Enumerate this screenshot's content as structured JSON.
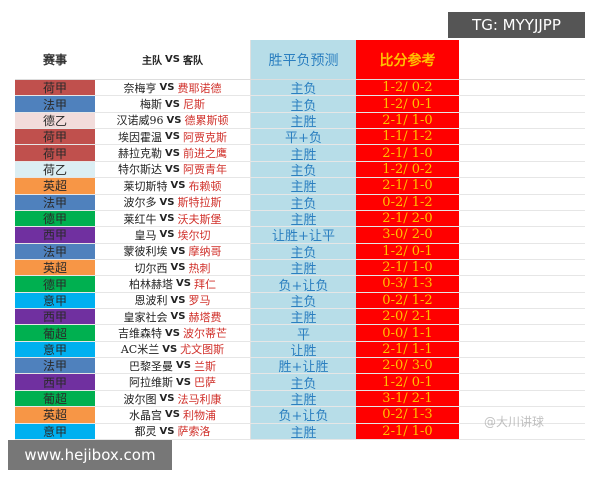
{
  "header": {
    "league": "赛事",
    "teams_home": "主队",
    "teams_vs": "VS",
    "teams_away": "客队",
    "prediction": "胜平负预测",
    "score": "比分参考"
  },
  "watermarks": {
    "tg": "TG: MYYJJPP",
    "site": "www.hejibox.com",
    "author": "@大川讲球"
  },
  "league_colors": {
    "荷甲": "#c0504d",
    "法甲": "#4f81bd",
    "德乙": "#f2dcdb",
    "荷乙": "#dbeef3",
    "英超": "#f79646",
    "德甲": "#00b050",
    "西甲": "#7030a0",
    "意甲": "#00b0f0",
    "葡超": "#00b050"
  },
  "rows": [
    {
      "league": "荷甲",
      "home": "奈梅亨",
      "vs": "VS",
      "away": "费耶诺德",
      "prediction": "主负",
      "score": "1-2/ 0-2"
    },
    {
      "league": "法甲",
      "home": "梅斯",
      "vs": "VS",
      "away": "尼斯",
      "prediction": "主负",
      "score": "1-2/ 0-1"
    },
    {
      "league": "德乙",
      "home": "汉诺威96",
      "vs": "VS",
      "away": "德累斯顿",
      "prediction": "主胜",
      "score": "2-1/ 1-0"
    },
    {
      "league": "荷甲",
      "home": "埃因霍温",
      "vs": "VS",
      "away": "阿贾克斯",
      "prediction": "平+负",
      "score": "1-1/ 1-2"
    },
    {
      "league": "荷甲",
      "home": "赫拉克勒",
      "vs": "VS",
      "away": "前进之鹰",
      "prediction": "主胜",
      "score": "2-1/ 1-0"
    },
    {
      "league": "荷乙",
      "home": "特尔斯达",
      "vs": "VS",
      "away": "阿贾青年",
      "prediction": "主负",
      "score": "1-2/ 0-2"
    },
    {
      "league": "英超",
      "home": "莱切斯特",
      "vs": "VS",
      "away": "布赖顿",
      "prediction": "主胜",
      "score": "2-1/ 1-0"
    },
    {
      "league": "法甲",
      "home": "波尔多",
      "vs": "VS",
      "away": "斯特拉斯",
      "prediction": "主负",
      "score": "0-2/ 1-2"
    },
    {
      "league": "德甲",
      "home": "莱红牛",
      "vs": "VS",
      "away": "沃夫斯堡",
      "prediction": "主胜",
      "score": "2-1/ 2-0"
    },
    {
      "league": "西甲",
      "home": "皇马",
      "vs": "VS",
      "away": "埃尔切",
      "prediction": "让胜+让平",
      "score": "3-0/ 2-0"
    },
    {
      "league": "法甲",
      "home": "蒙彼利埃",
      "vs": "VS",
      "away": "摩纳哥",
      "prediction": "主负",
      "score": "1-2/ 0-1"
    },
    {
      "league": "英超",
      "home": "切尔西",
      "vs": "VS",
      "away": "热刺",
      "prediction": "主胜",
      "score": "2-1/ 1-0"
    },
    {
      "league": "德甲",
      "home": "柏林赫塔",
      "vs": "VS",
      "away": "拜仁",
      "prediction": "负+让负",
      "score": "0-3/ 1-3"
    },
    {
      "league": "意甲",
      "home": "恩波利",
      "vs": "VS",
      "away": "罗马",
      "prediction": "主负",
      "score": "0-2/ 1-2"
    },
    {
      "league": "西甲",
      "home": "皇家社会",
      "vs": "VS",
      "away": "赫塔费",
      "prediction": "主胜",
      "score": "2-0/ 2-1"
    },
    {
      "league": "葡超",
      "home": "吉维森特",
      "vs": "VS",
      "away": "波尔蒂芒",
      "prediction": "平",
      "score": "0-0/ 1-1"
    },
    {
      "league": "意甲",
      "home": "AC米兰",
      "vs": "VS",
      "away": "尤文图斯",
      "prediction": "让胜",
      "score": "2-1/ 1-1"
    },
    {
      "league": "法甲",
      "home": "巴黎圣曼",
      "vs": "VS",
      "away": "兰斯",
      "prediction": "胜+让胜",
      "score": "2-0/ 3-0"
    },
    {
      "league": "西甲",
      "home": "阿拉维斯",
      "vs": "VS",
      "away": "巴萨",
      "prediction": "主负",
      "score": "1-2/ 0-1"
    },
    {
      "league": "葡超",
      "home": "波尔图",
      "vs": "VS",
      "away": "法马利康",
      "prediction": "主胜",
      "score": "3-1/ 2-1"
    },
    {
      "league": "英超",
      "home": "水晶宫",
      "vs": "VS",
      "away": "利物浦",
      "prediction": "负+让负",
      "score": "0-2/ 1-3"
    },
    {
      "league": "意甲",
      "home": "都灵",
      "vs": "VS",
      "away": "萨索洛",
      "prediction": "主胜",
      "score": "2-1/ 1-0"
    }
  ]
}
